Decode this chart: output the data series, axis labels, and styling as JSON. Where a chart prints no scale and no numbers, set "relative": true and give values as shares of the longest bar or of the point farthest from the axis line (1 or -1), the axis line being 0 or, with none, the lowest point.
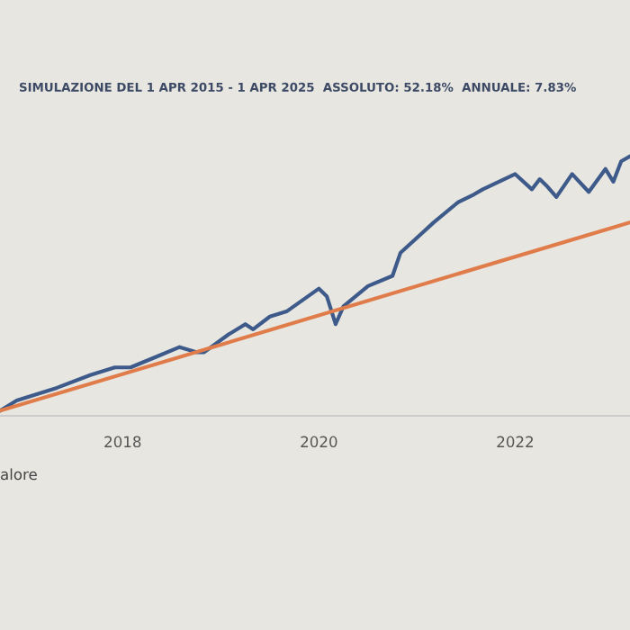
{
  "chart_data": {
    "type": "line",
    "title": "SIMULAZIONE DEL 1 APR 2015 - 1 APR 2025  ASSOLUTO: 52.18%  ANNUALE: 7.83%",
    "relative": true,
    "xlim": [
      2016.75,
      2023.17
    ],
    "xticks": [
      2018,
      2020,
      2022
    ],
    "grid": false,
    "marker": "none",
    "line_style": "solid",
    "annotations": [
      "alore"
    ],
    "series": [
      {
        "color": "#3d5a8a",
        "x": [
          2016.75,
          2016.92,
          2017.33,
          2017.67,
          2017.92,
          2018.08,
          2018.33,
          2018.58,
          2018.75,
          2018.83,
          2019.08,
          2019.25,
          2019.33,
          2019.5,
          2019.67,
          2020.0,
          2020.08,
          2020.17,
          2020.25,
          2020.5,
          2020.75,
          2020.83,
          2021.17,
          2021.42,
          2021.58,
          2021.67,
          2022.0,
          2022.17,
          2022.25,
          2022.33,
          2022.42,
          2022.58,
          2022.75,
          2022.92,
          2023.0,
          2023.08,
          2023.17
        ],
        "values": [
          0,
          0.04,
          0.09,
          0.14,
          0.17,
          0.17,
          0.21,
          0.25,
          0.23,
          0.23,
          0.3,
          0.34,
          0.32,
          0.37,
          0.39,
          0.48,
          0.45,
          0.34,
          0.41,
          0.49,
          0.53,
          0.62,
          0.74,
          0.82,
          0.85,
          0.87,
          0.93,
          0.87,
          0.91,
          0.88,
          0.84,
          0.93,
          0.86,
          0.95,
          0.9,
          0.98,
          1
        ]
      },
      {
        "color": "#e07b4a",
        "x": [
          2016.75,
          2023.17
        ],
        "values": [
          0,
          0.74
        ]
      }
    ]
  }
}
